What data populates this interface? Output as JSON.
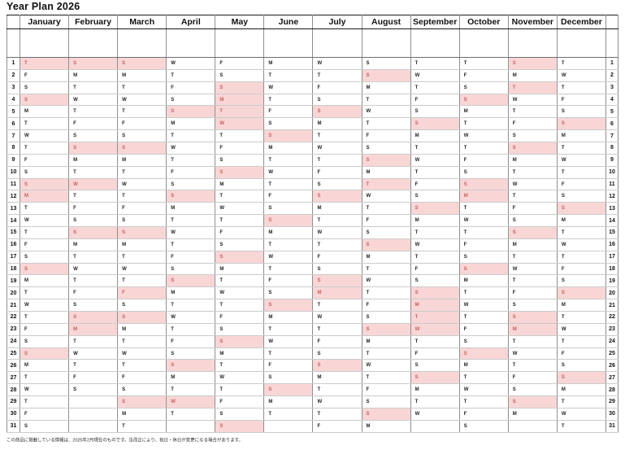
{
  "title": "Year Plan 2026",
  "note": "この商品に掲載している情報は、2025年2月現在のものです。法改正により、祝日・休日が変更になる場合があります。",
  "colors": {
    "highlight_bg": "#f9d6d6",
    "highlight_text": "#c9605f",
    "grid_line_vertical": "#8f8f8f",
    "grid_line_horizontal": "#cbcbcb",
    "border": "#1a1a1a"
  },
  "calendar": {
    "year": "2026",
    "day_numbers": [
      1,
      2,
      3,
      4,
      5,
      6,
      7,
      8,
      9,
      10,
      11,
      12,
      13,
      14,
      15,
      16,
      17,
      18,
      19,
      20,
      21,
      22,
      23,
      24,
      25,
      26,
      27,
      28,
      29,
      30,
      31
    ],
    "months": [
      {
        "name": "January",
        "letters": [
          "T",
          "F",
          "S",
          "S",
          "M",
          "T",
          "W",
          "T",
          "F",
          "S",
          "S",
          "M",
          "T",
          "W",
          "T",
          "F",
          "S",
          "S",
          "M",
          "T",
          "W",
          "T",
          "F",
          "S",
          "S",
          "M",
          "T",
          "W",
          "T",
          "F",
          "S"
        ],
        "red_days": [
          1,
          4,
          11,
          12,
          18,
          25
        ]
      },
      {
        "name": "February",
        "letters": [
          "S",
          "M",
          "T",
          "W",
          "T",
          "F",
          "S",
          "S",
          "M",
          "T",
          "W",
          "T",
          "F",
          "S",
          "S",
          "M",
          "T",
          "W",
          "T",
          "F",
          "S",
          "S",
          "M",
          "T",
          "W",
          "T",
          "F",
          "S",
          "",
          "",
          ""
        ],
        "red_days": [
          1,
          8,
          11,
          15,
          22,
          23
        ]
      },
      {
        "name": "March",
        "letters": [
          "S",
          "M",
          "T",
          "W",
          "T",
          "F",
          "S",
          "S",
          "M",
          "T",
          "W",
          "T",
          "F",
          "S",
          "S",
          "M",
          "T",
          "W",
          "T",
          "F",
          "S",
          "S",
          "M",
          "T",
          "W",
          "T",
          "F",
          "S",
          "S",
          "M",
          "T"
        ],
        "red_days": [
          1,
          8,
          15,
          20,
          22,
          29
        ]
      },
      {
        "name": "April",
        "letters": [
          "W",
          "T",
          "F",
          "S",
          "S",
          "M",
          "T",
          "W",
          "T",
          "F",
          "S",
          "S",
          "M",
          "T",
          "W",
          "T",
          "F",
          "S",
          "S",
          "M",
          "T",
          "W",
          "T",
          "F",
          "S",
          "S",
          "M",
          "T",
          "W",
          "T",
          ""
        ],
        "red_days": [
          5,
          12,
          19,
          26,
          29
        ]
      },
      {
        "name": "May",
        "letters": [
          "F",
          "S",
          "S",
          "M",
          "T",
          "W",
          "T",
          "F",
          "S",
          "S",
          "M",
          "T",
          "W",
          "T",
          "F",
          "S",
          "S",
          "M",
          "T",
          "W",
          "T",
          "F",
          "S",
          "S",
          "M",
          "T",
          "W",
          "T",
          "F",
          "S",
          "S"
        ],
        "red_days": [
          3,
          4,
          5,
          6,
          10,
          17,
          24,
          31
        ]
      },
      {
        "name": "June",
        "letters": [
          "M",
          "T",
          "W",
          "T",
          "F",
          "S",
          "S",
          "M",
          "T",
          "W",
          "T",
          "F",
          "S",
          "S",
          "M",
          "T",
          "W",
          "T",
          "F",
          "S",
          "S",
          "M",
          "T",
          "W",
          "T",
          "F",
          "S",
          "S",
          "M",
          "T",
          ""
        ],
        "red_days": [
          7,
          14,
          21,
          28
        ]
      },
      {
        "name": "July",
        "letters": [
          "W",
          "T",
          "F",
          "S",
          "S",
          "M",
          "T",
          "W",
          "T",
          "F",
          "S",
          "S",
          "M",
          "T",
          "W",
          "T",
          "F",
          "S",
          "S",
          "M",
          "T",
          "W",
          "T",
          "F",
          "S",
          "S",
          "M",
          "T",
          "W",
          "T",
          "F"
        ],
        "red_days": [
          5,
          12,
          19,
          20,
          26
        ]
      },
      {
        "name": "August",
        "letters": [
          "S",
          "S",
          "M",
          "T",
          "W",
          "T",
          "F",
          "S",
          "S",
          "M",
          "T",
          "W",
          "T",
          "F",
          "S",
          "S",
          "M",
          "T",
          "W",
          "T",
          "F",
          "S",
          "S",
          "M",
          "T",
          "W",
          "T",
          "F",
          "S",
          "S",
          "M"
        ],
        "red_days": [
          2,
          9,
          11,
          16,
          23,
          30
        ]
      },
      {
        "name": "September",
        "letters": [
          "T",
          "W",
          "T",
          "F",
          "S",
          "S",
          "M",
          "T",
          "W",
          "T",
          "F",
          "S",
          "S",
          "M",
          "T",
          "W",
          "T",
          "F",
          "S",
          "S",
          "M",
          "T",
          "W",
          "T",
          "F",
          "S",
          "S",
          "M",
          "T",
          "W",
          ""
        ],
        "red_days": [
          6,
          13,
          20,
          21,
          22,
          23,
          27
        ]
      },
      {
        "name": "October",
        "letters": [
          "T",
          "F",
          "S",
          "S",
          "M",
          "T",
          "W",
          "T",
          "F",
          "S",
          "S",
          "M",
          "T",
          "W",
          "T",
          "F",
          "S",
          "S",
          "M",
          "T",
          "W",
          "T",
          "F",
          "S",
          "S",
          "M",
          "T",
          "W",
          "T",
          "F",
          "S"
        ],
        "red_days": [
          4,
          11,
          12,
          18,
          25
        ]
      },
      {
        "name": "November",
        "letters": [
          "S",
          "M",
          "T",
          "W",
          "T",
          "F",
          "S",
          "S",
          "M",
          "T",
          "W",
          "T",
          "F",
          "S",
          "S",
          "M",
          "T",
          "W",
          "T",
          "F",
          "S",
          "S",
          "M",
          "T",
          "W",
          "T",
          "F",
          "S",
          "S",
          "M",
          ""
        ],
        "red_days": [
          1,
          3,
          8,
          15,
          22,
          23,
          29
        ]
      },
      {
        "name": "December",
        "letters": [
          "T",
          "W",
          "T",
          "F",
          "S",
          "S",
          "M",
          "T",
          "W",
          "T",
          "F",
          "S",
          "S",
          "M",
          "T",
          "W",
          "T",
          "F",
          "S",
          "S",
          "M",
          "T",
          "W",
          "T",
          "F",
          "S",
          "S",
          "M",
          "T",
          "W",
          "T"
        ],
        "red_days": [
          6,
          13,
          20,
          27
        ]
      }
    ]
  }
}
